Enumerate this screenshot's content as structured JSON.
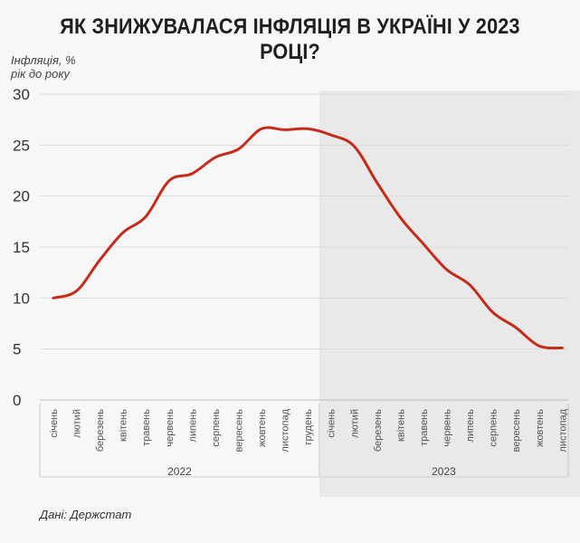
{
  "title": "ЯК ЗНИЖУВАЛАСЯ ІНФЛЯЦІЯ В УКРАЇНІ У 2023 РОЦІ?",
  "ylabel_line1": "Інфляція, %",
  "ylabel_line2": "рік до року",
  "source": "Дані: Держстат",
  "colors": {
    "line": "#c62a18",
    "shade": "#e9e9e9",
    "grid": "#dadada",
    "text": "#333333"
  },
  "chart_data": {
    "type": "line",
    "title": "ЯК ЗНИЖУВАЛАСЯ ІНФЛЯЦІЯ В УКРАЇНІ У 2023 РОЦІ?",
    "ylabel": "Інфляція, % рік до року",
    "ylim": [
      0,
      30
    ],
    "yticks": [
      0,
      5,
      10,
      15,
      20,
      25,
      30
    ],
    "grid": "horizontal",
    "categories": [
      "січень",
      "лютий",
      "березень",
      "квітень",
      "травень",
      "червень",
      "липень",
      "серпень",
      "вересень",
      "жовтень",
      "листопад",
      "грудень",
      "січень",
      "лютий",
      "березень",
      "квітень",
      "травень",
      "червень",
      "липень",
      "серпень",
      "вересень",
      "жовтень",
      "листопад"
    ],
    "groups": [
      {
        "label": "2022",
        "start": 0,
        "end": 11
      },
      {
        "label": "2023",
        "start": 12,
        "end": 22,
        "shaded": true
      }
    ],
    "series": [
      {
        "values": [
          10.0,
          10.7,
          13.7,
          16.4,
          18.0,
          21.5,
          22.2,
          23.8,
          24.6,
          26.6,
          26.5,
          26.6,
          26.0,
          24.9,
          21.3,
          17.9,
          15.3,
          12.8,
          11.3,
          8.6,
          7.1,
          5.3,
          5.1
        ]
      }
    ]
  }
}
